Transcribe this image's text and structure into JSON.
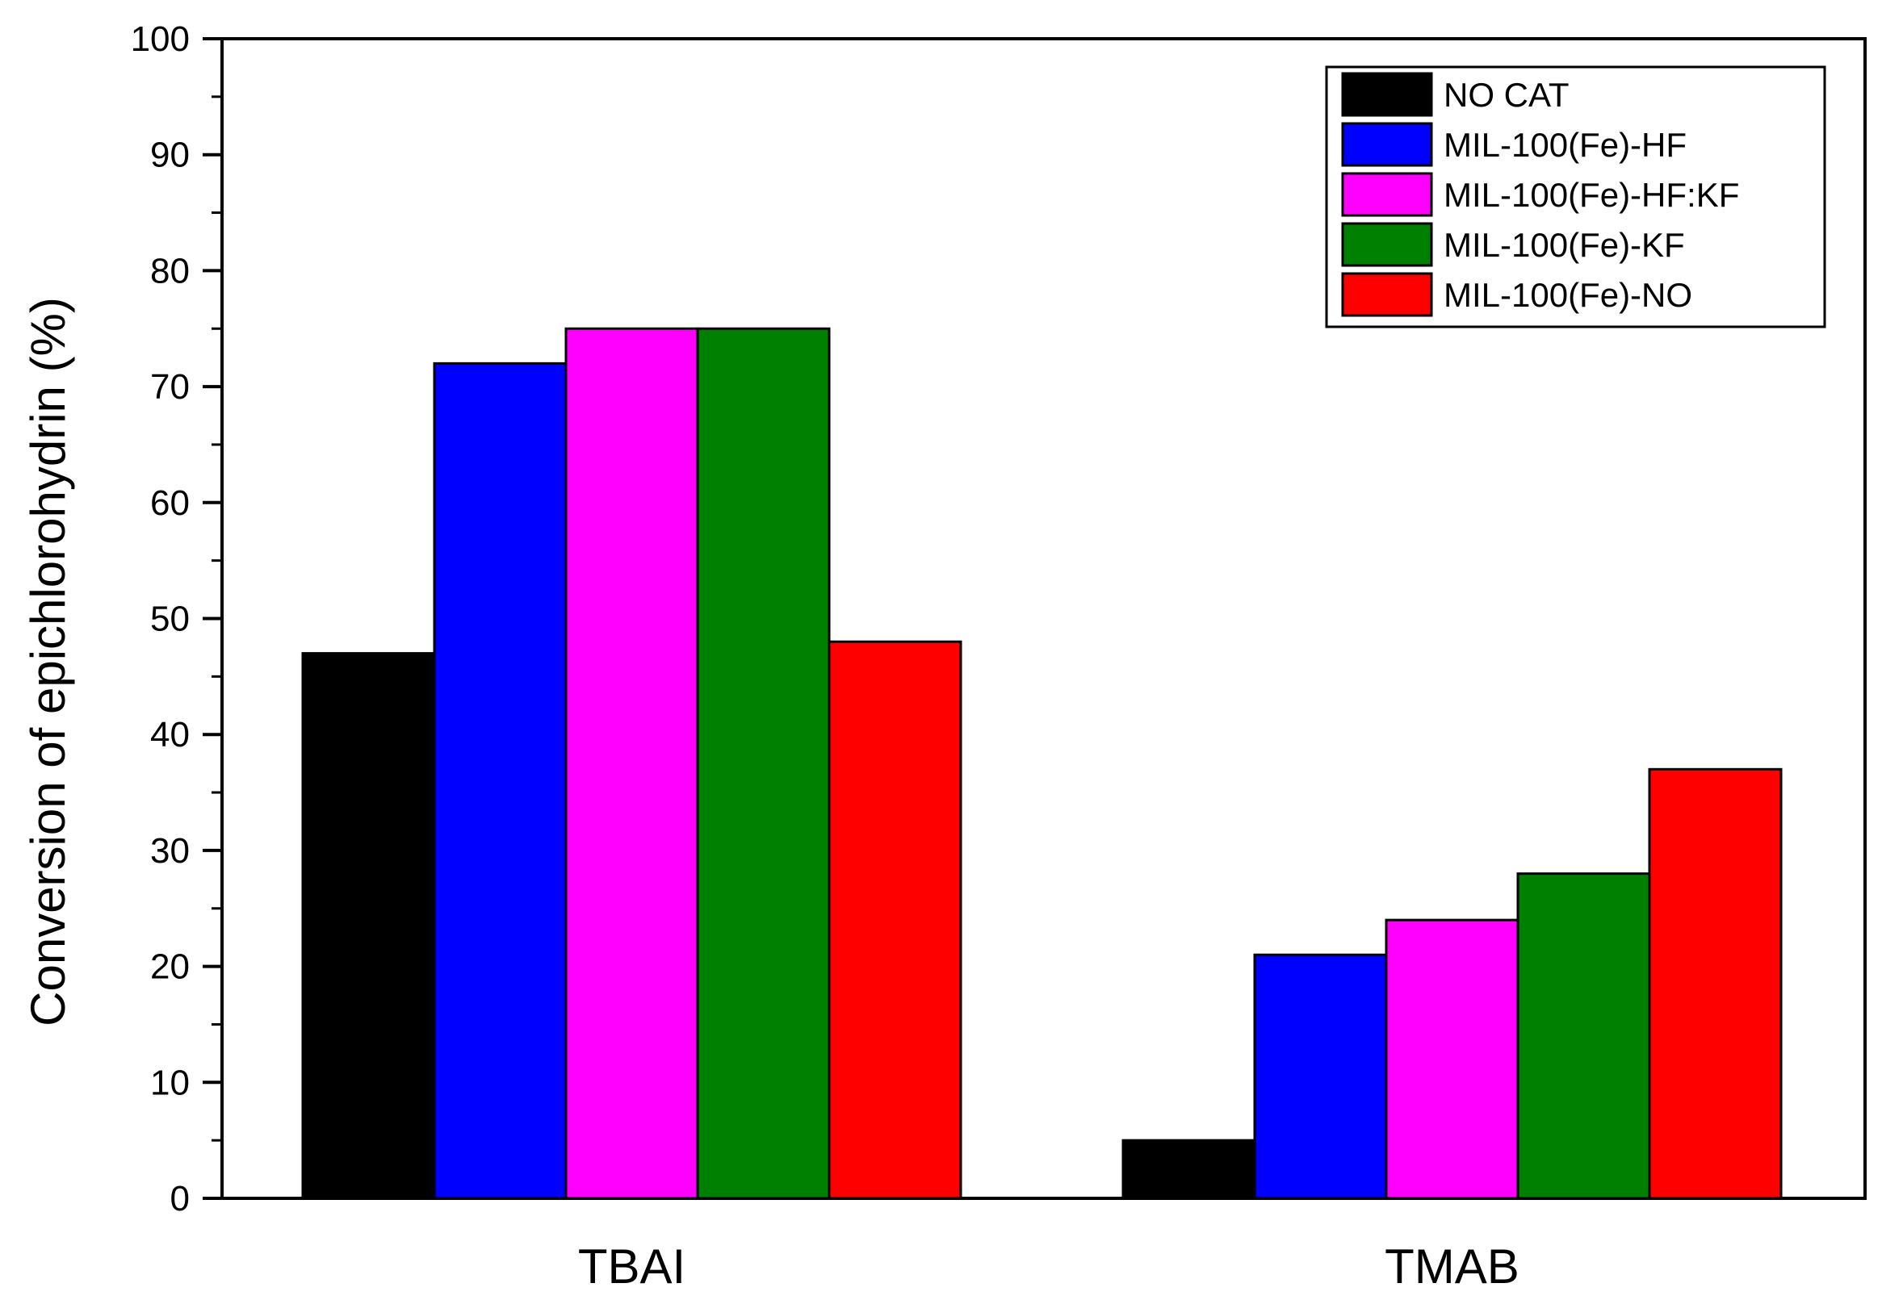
{
  "chart_data": {
    "type": "bar",
    "title": "",
    "xlabel": "",
    "ylabel": "Conversion of epichlorohydrin (%)",
    "categories": [
      "TBAI",
      "TMAB"
    ],
    "series": [
      {
        "name": "NO CAT",
        "color": "#000000",
        "values": [
          47,
          5
        ]
      },
      {
        "name": "MIL-100(Fe)-HF",
        "color": "#0000ff",
        "values": [
          72,
          21
        ]
      },
      {
        "name": "MIL-100(Fe)-HF:KF",
        "color": "#ff00ff",
        "values": [
          75,
          24
        ]
      },
      {
        "name": "MIL-100(Fe)-KF",
        "color": "#008000",
        "values": [
          75,
          28
        ]
      },
      {
        "name": "MIL-100(Fe)-NO",
        "color": "#ff0000",
        "values": [
          48,
          37
        ]
      }
    ],
    "ylim": [
      0,
      100
    ],
    "yticks": [
      0,
      10,
      20,
      30,
      40,
      50,
      60,
      70,
      80,
      90,
      100
    ],
    "grid": false,
    "legend": "top-right"
  }
}
